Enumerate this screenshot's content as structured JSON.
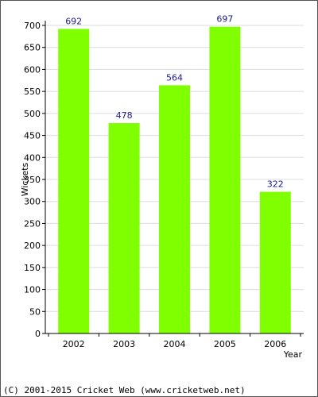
{
  "chart_data": {
    "type": "bar",
    "categories": [
      "2002",
      "2003",
      "2004",
      "2005",
      "2006"
    ],
    "values": [
      692,
      478,
      564,
      697,
      322
    ],
    "data_labels": [
      "692",
      "478",
      "564",
      "697",
      "322"
    ],
    "title": "",
    "xlabel": "Year",
    "ylabel": "Wickets",
    "ylim": [
      0,
      700
    ],
    "yticks": [
      0,
      50,
      100,
      150,
      200,
      250,
      300,
      350,
      400,
      450,
      500,
      550,
      600,
      650,
      700
    ],
    "grid": true,
    "bar_color": "#80ff00"
  },
  "footer": {
    "copyright": "(C) 2001-2015 Cricket Web (www.cricketweb.net)"
  }
}
